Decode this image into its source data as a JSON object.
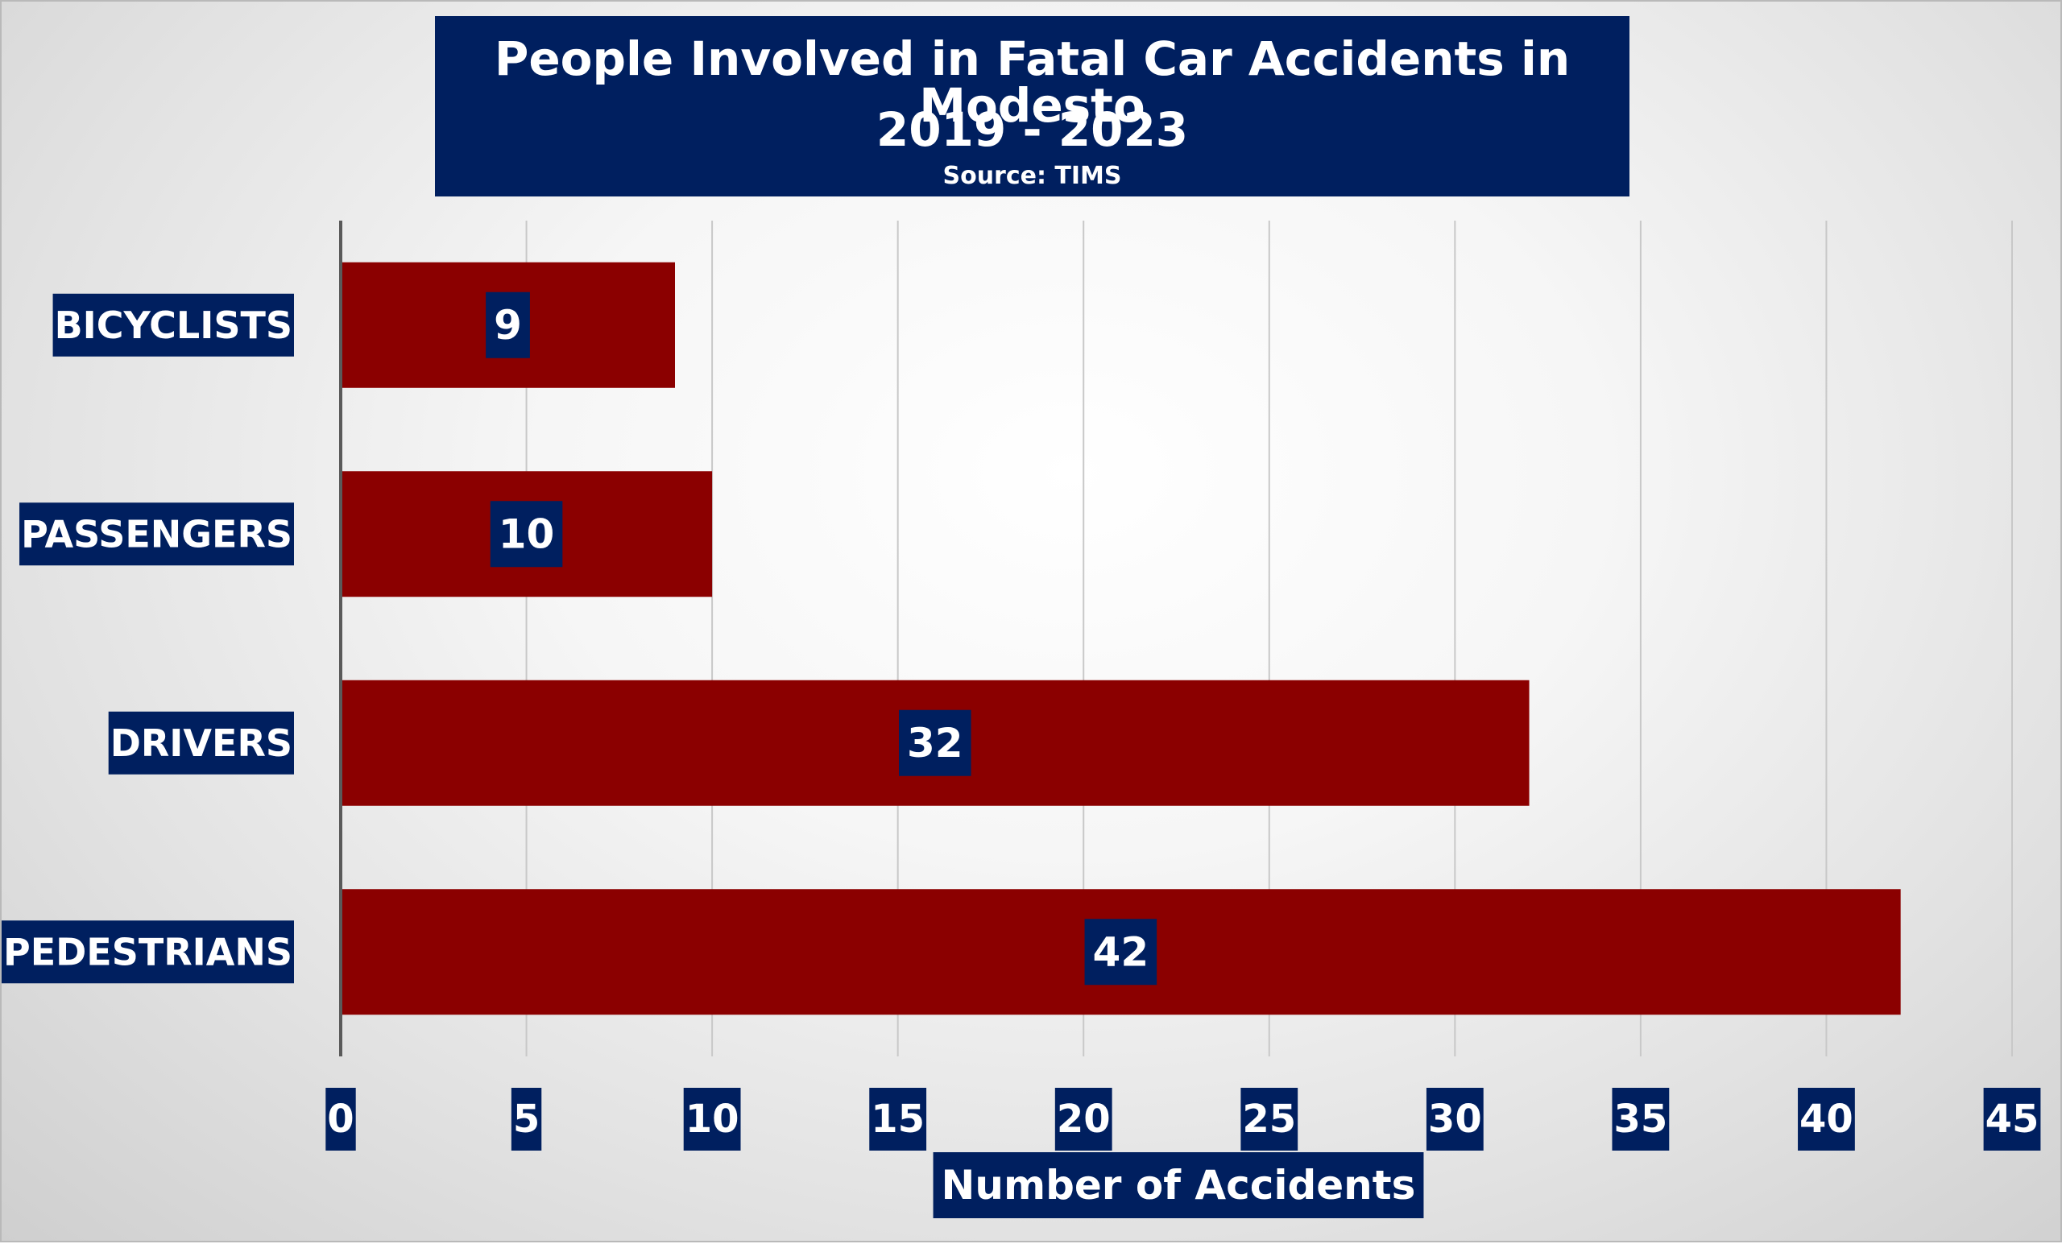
{
  "chart_data": {
    "type": "bar",
    "orientation": "horizontal",
    "title": "People Involved in Fatal Car Accidents in Modesto",
    "subtitle": "2019 - 2023",
    "source": "Source: TIMS",
    "categories": [
      "BICYCLISTS",
      "PASSENGERS",
      "DRIVERS",
      "PEDESTRIANS"
    ],
    "values": [
      9,
      10,
      32,
      42
    ],
    "xlabel": "Number of Accidents",
    "ylabel": "",
    "xlim": [
      0,
      45
    ],
    "xticks": [
      "0",
      "5",
      "10",
      "15",
      "20",
      "25",
      "30",
      "35",
      "40",
      "45"
    ],
    "grid": "vertical",
    "data_labels": true,
    "colors": {
      "bar": "#8b0000",
      "label_box": "#001f5f",
      "label_text": "#ffffff",
      "gridline": "#c8c8c8",
      "axis": "#5a5a5a"
    }
  }
}
